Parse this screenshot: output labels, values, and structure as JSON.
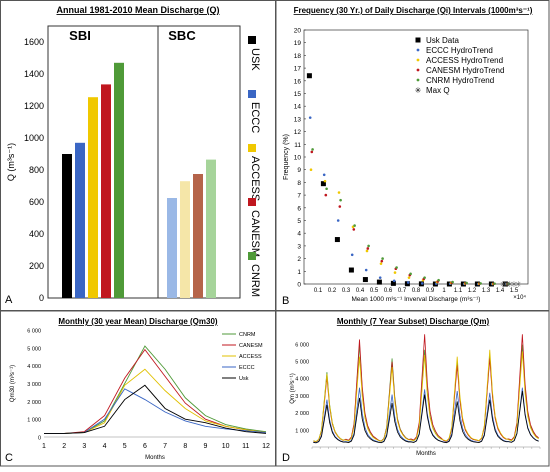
{
  "chart_data": [
    {
      "panel": "A",
      "type": "bar",
      "title": "Annual 1981-2010 Mean Discharge (Q)",
      "ylabel": "Q (m³s⁻¹)",
      "ylim": [
        0,
        1700
      ],
      "yticks": [
        0,
        200,
        400,
        600,
        800,
        1000,
        1200,
        1400,
        1600
      ],
      "groups": [
        "SBI",
        "SBC"
      ],
      "legend": [
        "USK",
        "ECCC",
        "ACCESS",
        "CANESM",
        "CNRM"
      ],
      "colors": [
        "#000000",
        "#3a66c4",
        "#f0c800",
        "#c0171f",
        "#4f9a38"
      ],
      "light_colors": [
        "#000000",
        "#9ab8e6",
        "#f5e6a8",
        "#b5644a",
        "#a6d49a"
      ],
      "series": [
        {
          "name": "USK",
          "values": [
            900,
            null
          ]
        },
        {
          "name": "ECCC",
          "values": [
            970,
            625
          ]
        },
        {
          "name": "ACCESS",
          "values": [
            1255,
            730
          ]
        },
        {
          "name": "CANESM",
          "values": [
            1335,
            775
          ]
        },
        {
          "name": "CNRM",
          "values": [
            1470,
            865
          ]
        }
      ]
    },
    {
      "panel": "B",
      "type": "scatter",
      "title": "Frequency (30 Yr.) of Daily Discharge (Qi) Intervals (1000m³s⁻¹)",
      "xlabel": "Mean 1000 m³s⁻¹ Inverval Discharge (m³s⁻¹)",
      "ylabel": "Frequency (%)",
      "x_multiplier": "×10⁴",
      "xlim": [
        0,
        1.6
      ],
      "ylim": [
        0,
        20
      ],
      "xticks": [
        0.1,
        0.2,
        0.3,
        0.4,
        0.5,
        0.6,
        0.7,
        0.8,
        0.9,
        1,
        1.1,
        1.2,
        1.3,
        1.4,
        1.5
      ],
      "yticks": [
        0,
        1,
        2,
        3,
        4,
        5,
        6,
        7,
        8,
        9,
        10,
        11,
        12,
        13,
        14,
        15,
        16,
        17,
        18,
        19,
        20
      ],
      "x": [
        0.05,
        0.15,
        0.25,
        0.35,
        0.45,
        0.55,
        0.65,
        0.75,
        0.85,
        0.95,
        1.05,
        1.15,
        1.25,
        1.35,
        1.45
      ],
      "series": [
        {
          "name": "Usk Data",
          "color": "#000000",
          "values": [
            16.4,
            7.9,
            3.5,
            1.1,
            0.35,
            0.15,
            0.05,
            0.02,
            0.01,
            0,
            0,
            0,
            0,
            0,
            0
          ]
        },
        {
          "name": "ECCC HydroTrend",
          "color": "#3a66c4",
          "values": [
            13.1,
            8.6,
            5.0,
            2.3,
            1.1,
            0.5,
            0.25,
            0.12,
            0.05,
            0.03,
            0.02,
            0.01,
            0,
            0,
            0
          ]
        },
        {
          "name": "ACCESS HydroTrend",
          "color": "#f0c800",
          "values": [
            9.0,
            8.1,
            7.2,
            4.5,
            2.6,
            1.6,
            0.9,
            0.5,
            0.3,
            0.15,
            0.08,
            0.04,
            0.02,
            0.01,
            0
          ]
        },
        {
          "name": "CANESM HydroTrend",
          "color": "#c0171f",
          "values": [
            10.4,
            7.0,
            6.1,
            4.3,
            2.8,
            1.8,
            1.2,
            0.7,
            0.4,
            0.2,
            0.1,
            0.06,
            0.03,
            0.02,
            0.01
          ]
        },
        {
          "name": "CNRM HydroTrend",
          "color": "#4f9a38",
          "values": [
            10.6,
            7.5,
            6.6,
            4.6,
            3.0,
            2.0,
            1.3,
            0.8,
            0.5,
            0.3,
            0.15,
            0.08,
            0.05,
            0.03,
            0.02
          ]
        }
      ],
      "max_q_label": "Max Q",
      "max_q_x": [
        1.5,
        1.45,
        1.42,
        1.53,
        1.47
      ],
      "legend_position": "top-right"
    },
    {
      "panel": "C",
      "type": "line",
      "title": "Monthly (30 year Mean) Discharge (Qm30)",
      "ylabel": "Qm30 (m³s⁻¹)",
      "xlabel": "Months",
      "x": [
        1,
        2,
        3,
        4,
        5,
        6,
        7,
        8,
        9,
        10,
        11,
        12
      ],
      "ylim": [
        0,
        6000
      ],
      "yticks": [
        "0",
        "1 000",
        "2 000",
        "3 000",
        "4 000",
        "5 000",
        "6 000"
      ],
      "series": [
        {
          "name": "CNRM",
          "color": "#4f9a38",
          "values": [
            200,
            200,
            250,
            900,
            3000,
            5100,
            3800,
            2200,
            1200,
            700,
            450,
            300
          ]
        },
        {
          "name": "CANESM",
          "color": "#c0171f",
          "values": [
            200,
            200,
            300,
            1200,
            3300,
            4900,
            3400,
            1900,
            1000,
            600,
            400,
            250
          ]
        },
        {
          "name": "ACCESS",
          "color": "#e0c000",
          "values": [
            200,
            200,
            250,
            800,
            2900,
            3800,
            2600,
            1600,
            900,
            600,
            400,
            250
          ]
        },
        {
          "name": "ECCC",
          "color": "#3a66c4",
          "values": [
            200,
            200,
            250,
            1000,
            2700,
            2100,
            1400,
            900,
            600,
            450,
            350,
            250
          ]
        },
        {
          "name": "Usk",
          "color": "#000000",
          "values": [
            200,
            200,
            250,
            600,
            2100,
            2900,
            1600,
            1000,
            800,
            500,
            300,
            200
          ]
        }
      ]
    },
    {
      "panel": "D",
      "type": "line",
      "title": "Monthly (7 Year Subset) Discharge (Qm)",
      "ylabel": "Qm (m³s⁻¹)",
      "xlabel": "Months",
      "ylim": [
        0,
        6800
      ],
      "yticks": [
        "1 000",
        "2 000",
        "3 000",
        "4 000",
        "5 000",
        "6 000"
      ],
      "years": 7,
      "series": [
        {
          "name": "CNRM",
          "color": "#4f9a38",
          "peaks": [
            4200,
            5800,
            5000,
            5500,
            4800,
            5200,
            5800
          ]
        },
        {
          "name": "CANESM",
          "color": "#c0171f",
          "peaks": [
            3900,
            6100,
            4800,
            6400,
            4600,
            5000,
            6400
          ]
        },
        {
          "name": "ACCESS",
          "color": "#e0c000",
          "peaks": [
            4100,
            5100,
            4500,
            5200,
            5100,
            5500,
            5400
          ]
        },
        {
          "name": "ECCC",
          "color": "#3a66c4",
          "peaks": [
            2600,
            3300,
            2900,
            3200,
            3100,
            3000,
            3300
          ]
        },
        {
          "name": "Usk",
          "color": "#000000",
          "peaks": [
            2300,
            2700,
            2400,
            2900,
            2500,
            2600,
            3100
          ]
        }
      ]
    }
  ],
  "panel_labels": [
    "A",
    "B",
    "C",
    "D"
  ]
}
